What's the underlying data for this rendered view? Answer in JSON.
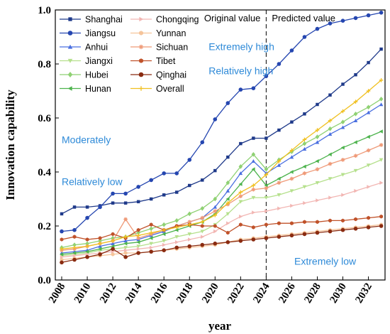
{
  "chart_data": {
    "type": "line",
    "xlabel": "year",
    "ylabel": "Innovation capability",
    "xlim": [
      2007.5,
      2033.3
    ],
    "ylim": [
      0.0,
      1.0
    ],
    "x": [
      2008,
      2009,
      2010,
      2011,
      2012,
      2013,
      2014,
      2015,
      2016,
      2017,
      2018,
      2019,
      2020,
      2021,
      2022,
      2023,
      2024,
      2025,
      2026,
      2027,
      2028,
      2029,
      2030,
      2031,
      2032,
      2033
    ],
    "x_ticks": [
      "2008",
      "2010",
      "2012",
      "2014",
      "2016",
      "2018",
      "2020",
      "2022",
      "2024",
      "2026",
      "2028",
      "2030",
      "2032"
    ],
    "y_ticks": [
      "0.0",
      "0.2",
      "0.4",
      "0.6",
      "0.8",
      "1.0"
    ],
    "divider_year": 2024,
    "period_labels": [
      "Original value",
      "Predicted value"
    ],
    "zone_labels": [
      {
        "text": "Extremely high",
        "y": 0.865
      },
      {
        "text": "Relatively high",
        "y": 0.775
      },
      {
        "text": "Moderately",
        "y": 0.52
      },
      {
        "text": "Relatively low",
        "y": 0.365
      },
      {
        "text": "Extremely low",
        "y": 0.07
      }
    ],
    "series": [
      {
        "name": "Shanghai",
        "color": "#1f3a8a",
        "marker": "square",
        "values": [
          0.245,
          0.27,
          0.27,
          0.275,
          0.285,
          0.285,
          0.29,
          0.3,
          0.315,
          0.325,
          0.35,
          0.37,
          0.405,
          0.455,
          0.505,
          0.525,
          0.525,
          0.555,
          0.585,
          0.615,
          0.65,
          0.685,
          0.725,
          0.76,
          0.805,
          0.855
        ]
      },
      {
        "name": "Jiangsu",
        "color": "#2546b0",
        "marker": "circle",
        "values": [
          0.18,
          0.185,
          0.23,
          0.27,
          0.32,
          0.32,
          0.345,
          0.37,
          0.395,
          0.395,
          0.445,
          0.51,
          0.595,
          0.655,
          0.705,
          0.71,
          0.755,
          0.8,
          0.85,
          0.9,
          0.93,
          0.95,
          0.96,
          0.97,
          0.98,
          0.99
        ]
      },
      {
        "name": "Anhui",
        "color": "#4a6fe0",
        "marker": "triangle",
        "values": [
          0.1,
          0.105,
          0.11,
          0.125,
          0.135,
          0.145,
          0.15,
          0.165,
          0.18,
          0.2,
          0.215,
          0.23,
          0.27,
          0.33,
          0.395,
          0.44,
          0.395,
          0.425,
          0.455,
          0.485,
          0.51,
          0.54,
          0.565,
          0.59,
          0.62,
          0.65
        ]
      },
      {
        "name": "Jiangxi",
        "color": "#b5e08c",
        "marker": "tri-down",
        "values": [
          0.09,
          0.095,
          0.1,
          0.11,
          0.115,
          0.12,
          0.125,
          0.135,
          0.145,
          0.16,
          0.17,
          0.18,
          0.205,
          0.245,
          0.29,
          0.305,
          0.305,
          0.315,
          0.33,
          0.345,
          0.36,
          0.375,
          0.39,
          0.405,
          0.425,
          0.445
        ]
      },
      {
        "name": "Hubei",
        "color": "#8fd173",
        "marker": "diamond",
        "values": [
          0.12,
          0.13,
          0.135,
          0.145,
          0.155,
          0.16,
          0.175,
          0.19,
          0.205,
          0.22,
          0.245,
          0.265,
          0.3,
          0.36,
          0.42,
          0.465,
          0.41,
          0.445,
          0.475,
          0.505,
          0.53,
          0.56,
          0.585,
          0.615,
          0.64,
          0.67
        ]
      },
      {
        "name": "Hunan",
        "color": "#4db34d",
        "marker": "tri-left",
        "values": [
          0.095,
          0.1,
          0.105,
          0.115,
          0.125,
          0.135,
          0.14,
          0.155,
          0.17,
          0.185,
          0.2,
          0.215,
          0.245,
          0.3,
          0.355,
          0.41,
          0.35,
          0.375,
          0.4,
          0.42,
          0.44,
          0.465,
          0.49,
          0.51,
          0.53,
          0.55
        ]
      },
      {
        "name": "Chongqing",
        "color": "#f2b6b3",
        "marker": "tri-right",
        "values": [
          0.085,
          0.09,
          0.095,
          0.1,
          0.105,
          0.11,
          0.115,
          0.12,
          0.13,
          0.14,
          0.15,
          0.16,
          0.18,
          0.21,
          0.235,
          0.25,
          0.255,
          0.265,
          0.275,
          0.285,
          0.295,
          0.305,
          0.315,
          0.33,
          0.345,
          0.36
        ]
      },
      {
        "name": "Yunnan",
        "color": "#f5c49a",
        "marker": "hexagon",
        "values": [
          0.075,
          0.08,
          0.085,
          0.09,
          0.095,
          0.1,
          0.1,
          0.105,
          0.11,
          0.115,
          0.12,
          0.125,
          0.13,
          0.14,
          0.15,
          0.155,
          0.16,
          0.165,
          0.17,
          0.175,
          0.18,
          0.185,
          0.19,
          0.195,
          0.2,
          0.205
        ]
      },
      {
        "name": "Sichuan",
        "color": "#ef9a78",
        "marker": "star",
        "values": [
          0.11,
          0.115,
          0.125,
          0.135,
          0.145,
          0.225,
          0.155,
          0.17,
          0.185,
          0.2,
          0.215,
          0.23,
          0.255,
          0.28,
          0.31,
          0.335,
          0.34,
          0.36,
          0.375,
          0.395,
          0.41,
          0.43,
          0.445,
          0.46,
          0.48,
          0.5
        ]
      },
      {
        "name": "Tibet",
        "color": "#c0522a",
        "marker": "hexagon",
        "values": [
          0.15,
          0.16,
          0.15,
          0.155,
          0.17,
          0.155,
          0.185,
          0.205,
          0.185,
          0.2,
          0.205,
          0.2,
          0.2,
          0.175,
          0.205,
          0.195,
          0.205,
          0.21,
          0.21,
          0.215,
          0.215,
          0.22,
          0.22,
          0.225,
          0.23,
          0.235
        ]
      },
      {
        "name": "Qinghai",
        "color": "#8a2b10",
        "marker": "circle",
        "values": [
          0.065,
          0.075,
          0.085,
          0.095,
          0.115,
          0.085,
          0.1,
          0.105,
          0.11,
          0.12,
          0.125,
          0.13,
          0.135,
          0.14,
          0.145,
          0.15,
          0.155,
          0.16,
          0.165,
          0.17,
          0.175,
          0.18,
          0.185,
          0.19,
          0.195,
          0.2
        ]
      },
      {
        "name": "Overall",
        "color": "#f0c020",
        "marker": "plus",
        "values": [
          0.115,
          0.12,
          0.125,
          0.135,
          0.145,
          0.16,
          0.165,
          0.175,
          0.185,
          0.195,
          0.205,
          0.215,
          0.24,
          0.285,
          0.325,
          0.35,
          0.39,
          0.44,
          0.48,
          0.52,
          0.555,
          0.59,
          0.625,
          0.66,
          0.7,
          0.74
        ]
      }
    ],
    "legend_position": "top-left"
  }
}
